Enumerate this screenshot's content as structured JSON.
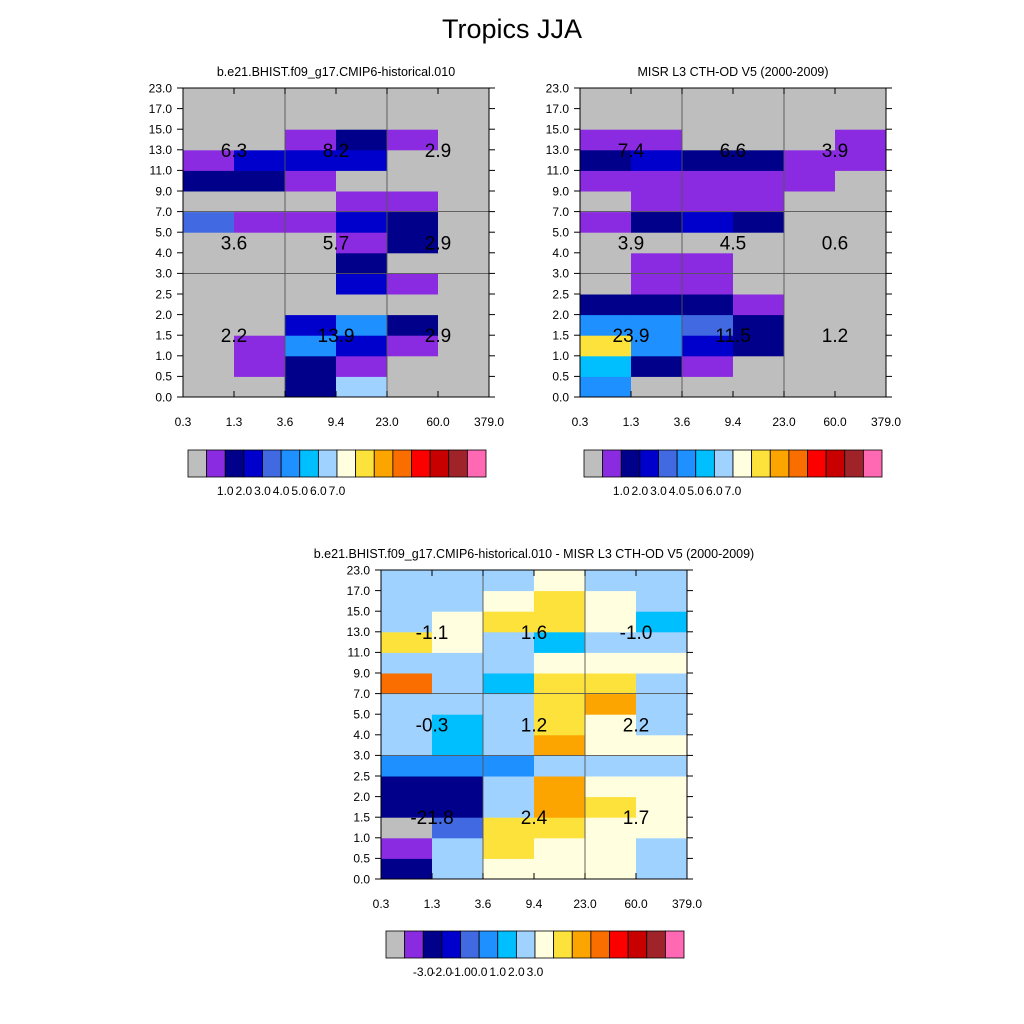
{
  "title": "Tropics JJA",
  "colors": {
    "palette": [
      "#bebebe",
      "#8a2be2",
      "#00008b",
      "#0000cd",
      "#4169e1",
      "#1e90ff",
      "#00bfff",
      "#a0d2ff",
      "#ffffe0",
      "#fde23c",
      "#fca400",
      "#fa6e00",
      "#fc0000",
      "#c80000",
      "#a0232a",
      "#ff69b4"
    ],
    "grid_line": "#555555"
  },
  "colorbars": {
    "absolute_labels": [
      "1.0",
      "2.0",
      "3.0",
      "4.0",
      "5.0",
      "6.0",
      "7.0"
    ],
    "difference_labels": [
      "-3.0",
      "-2.0",
      "-1.0",
      "0.0",
      "1.0",
      "2.0",
      "3.0"
    ]
  },
  "chart_data": [
    {
      "type": "heatmap",
      "title": "b.e21.BHIST.f09_g17.CMIP6-historical.010",
      "x_ticks": [
        "0.3",
        "1.3",
        "3.6",
        "9.4",
        "23.0",
        "60.0",
        "379.0"
      ],
      "y_ticks": [
        "0.0",
        "0.5",
        "1.0",
        "1.5",
        "2.0",
        "2.5",
        "3.0",
        "4.0",
        "5.0",
        "7.0",
        "9.0",
        "11.0",
        "13.0",
        "15.0",
        "17.0",
        "23.0"
      ],
      "color_index_grid": [
        [
          0,
          0,
          2,
          7,
          0,
          0
        ],
        [
          0,
          1,
          2,
          1,
          0,
          0
        ],
        [
          0,
          1,
          5,
          3,
          1,
          0
        ],
        [
          0,
          0,
          3,
          5,
          2,
          0
        ],
        [
          0,
          0,
          0,
          0,
          0,
          0
        ],
        [
          0,
          0,
          0,
          3,
          1,
          0
        ],
        [
          0,
          0,
          0,
          2,
          0,
          0
        ],
        [
          0,
          0,
          0,
          1,
          2,
          0
        ],
        [
          4,
          1,
          1,
          3,
          2,
          0
        ],
        [
          0,
          0,
          0,
          1,
          1,
          0
        ],
        [
          2,
          2,
          1,
          0,
          0,
          0
        ],
        [
          1,
          3,
          3,
          3,
          0,
          0
        ],
        [
          0,
          0,
          1,
          2,
          1,
          0
        ],
        [
          0,
          0,
          0,
          0,
          0,
          0
        ],
        [
          0,
          0,
          0,
          0,
          0,
          0
        ]
      ],
      "region_values": [
        {
          "row": 0,
          "col": 0,
          "label": "2.2"
        },
        {
          "row": 0,
          "col": 1,
          "label": "13.9"
        },
        {
          "row": 0,
          "col": 2,
          "label": "2.9"
        },
        {
          "row": 1,
          "col": 0,
          "label": "3.6"
        },
        {
          "row": 1,
          "col": 1,
          "label": "5.7"
        },
        {
          "row": 1,
          "col": 2,
          "label": "2.9"
        },
        {
          "row": 2,
          "col": 0,
          "label": "6.3"
        },
        {
          "row": 2,
          "col": 1,
          "label": "8.2"
        },
        {
          "row": 2,
          "col": 2,
          "label": "2.9"
        }
      ]
    },
    {
      "type": "heatmap",
      "title": "MISR L3 CTH-OD V5 (2000-2009)",
      "x_ticks": [
        "0.3",
        "1.3",
        "3.6",
        "9.4",
        "23.0",
        "60.0",
        "379.0"
      ],
      "y_ticks": [
        "0.0",
        "0.5",
        "1.0",
        "1.5",
        "2.0",
        "2.5",
        "3.0",
        "4.0",
        "5.0",
        "7.0",
        "9.0",
        "11.0",
        "13.0",
        "15.0",
        "17.0",
        "23.0"
      ],
      "color_index_grid": [
        [
          5,
          0,
          0,
          0,
          0,
          0
        ],
        [
          6,
          2,
          1,
          0,
          0,
          0
        ],
        [
          9,
          5,
          3,
          2,
          0,
          0
        ],
        [
          5,
          5,
          4,
          2,
          0,
          0
        ],
        [
          2,
          2,
          2,
          1,
          0,
          0
        ],
        [
          0,
          1,
          1,
          0,
          0,
          0
        ],
        [
          0,
          1,
          1,
          0,
          0,
          0
        ],
        [
          0,
          0,
          0,
          0,
          0,
          0
        ],
        [
          1,
          2,
          3,
          2,
          0,
          0
        ],
        [
          0,
          1,
          1,
          1,
          0,
          0
        ],
        [
          1,
          1,
          1,
          1,
          1,
          0
        ],
        [
          2,
          3,
          2,
          2,
          1,
          1
        ],
        [
          1,
          1,
          0,
          0,
          0,
          1
        ],
        [
          0,
          0,
          0,
          0,
          0,
          0
        ],
        [
          0,
          0,
          0,
          0,
          0,
          0
        ]
      ],
      "region_values": [
        {
          "row": 0,
          "col": 0,
          "label": "23.9"
        },
        {
          "row": 0,
          "col": 1,
          "label": "11.5"
        },
        {
          "row": 0,
          "col": 2,
          "label": "1.2"
        },
        {
          "row": 1,
          "col": 0,
          "label": "3.9"
        },
        {
          "row": 1,
          "col": 1,
          "label": "4.5"
        },
        {
          "row": 1,
          "col": 2,
          "label": "0.6"
        },
        {
          "row": 2,
          "col": 0,
          "label": "7.4"
        },
        {
          "row": 2,
          "col": 1,
          "label": "6.6"
        },
        {
          "row": 2,
          "col": 2,
          "label": "3.9"
        }
      ]
    },
    {
      "type": "heatmap",
      "title": "b.e21.BHIST.f09_g17.CMIP6-historical.010 - MISR L3 CTH-OD V5 (2000-2009)",
      "x_ticks": [
        "0.3",
        "1.3",
        "3.6",
        "9.4",
        "23.0",
        "60.0",
        "379.0"
      ],
      "y_ticks": [
        "0.0",
        "0.5",
        "1.0",
        "1.5",
        "2.0",
        "2.5",
        "3.0",
        "4.0",
        "5.0",
        "7.0",
        "9.0",
        "11.0",
        "13.0",
        "15.0",
        "17.0",
        "23.0"
      ],
      "color_index_grid": [
        [
          2,
          7,
          8,
          8,
          8,
          7
        ],
        [
          1,
          7,
          9,
          8,
          8,
          7
        ],
        [
          0,
          4,
          9,
          9,
          8,
          8
        ],
        [
          2,
          2,
          7,
          10,
          9,
          8
        ],
        [
          2,
          2,
          7,
          10,
          8,
          8
        ],
        [
          5,
          5,
          5,
          7,
          7,
          7
        ],
        [
          7,
          6,
          7,
          10,
          8,
          8
        ],
        [
          7,
          6,
          7,
          9,
          8,
          7
        ],
        [
          7,
          7,
          7,
          9,
          10,
          7
        ],
        [
          11,
          7,
          6,
          9,
          9,
          7
        ],
        [
          7,
          7,
          7,
          8,
          8,
          8
        ],
        [
          9,
          8,
          7,
          6,
          7,
          7
        ],
        [
          7,
          8,
          9,
          9,
          8,
          6
        ],
        [
          7,
          7,
          8,
          9,
          8,
          7
        ],
        [
          7,
          7,
          7,
          8,
          7,
          7
        ]
      ],
      "region_values": [
        {
          "row": 0,
          "col": 0,
          "label": "-21.8"
        },
        {
          "row": 0,
          "col": 1,
          "label": "2.4"
        },
        {
          "row": 0,
          "col": 2,
          "label": "1.7"
        },
        {
          "row": 1,
          "col": 0,
          "label": "-0.3"
        },
        {
          "row": 1,
          "col": 1,
          "label": "1.2"
        },
        {
          "row": 1,
          "col": 2,
          "label": "2.2"
        },
        {
          "row": 2,
          "col": 0,
          "label": "-1.1"
        },
        {
          "row": 2,
          "col": 1,
          "label": "1.6"
        },
        {
          "row": 2,
          "col": 2,
          "label": "-1.0"
        }
      ]
    }
  ]
}
